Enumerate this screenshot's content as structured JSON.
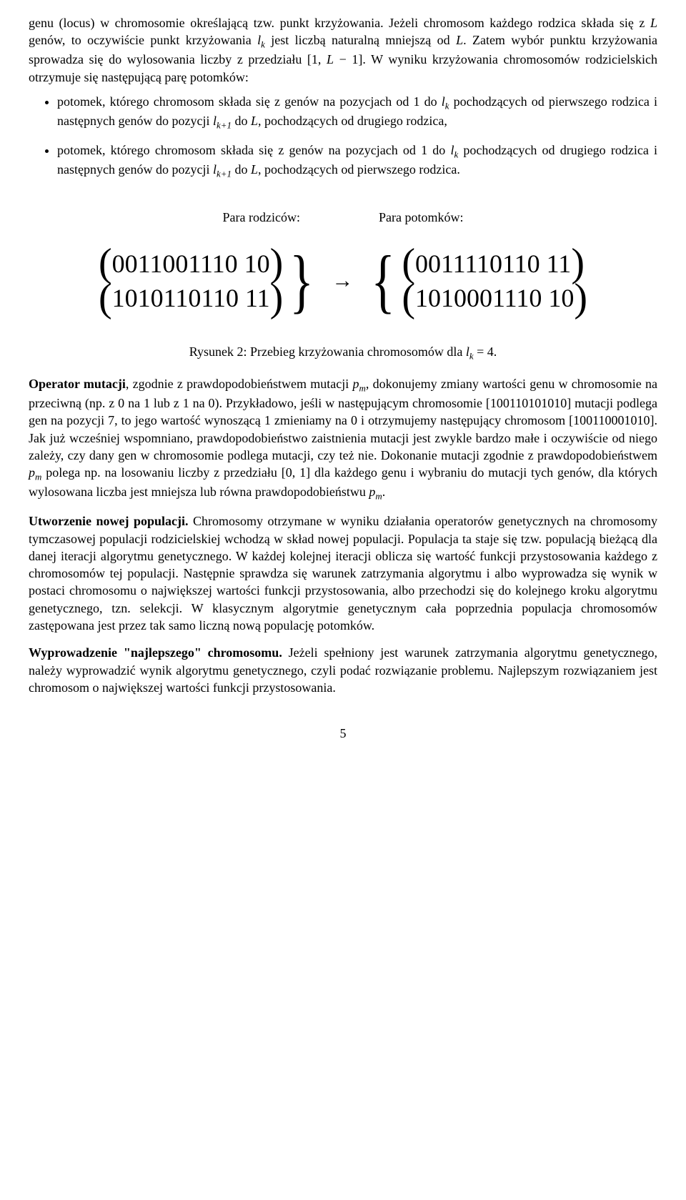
{
  "para1": {
    "t1": "genu (locus) w chromosomie określającą tzw. punkt krzyżowania. Jeżeli chromosom każdego rodzica składa się z ",
    "i1": "L",
    "t2": " genów, to oczywiście punkt krzyżowania ",
    "i2": "l",
    "s2": "k",
    "t3": " jest liczbą naturalną mniejszą od ",
    "i3": "L",
    "t4": ". Zatem wybór punktu krzyżowania sprowadza się do wylosowania liczby z przedziału [1, ",
    "i4": "L",
    "t5": " − 1]. W wyniku krzyżowania chromosomów rodzicielskich otrzymuje się następującą parę potomków:"
  },
  "bullet1": {
    "t1": "potomek, którego chromosom składa się z genów na pozycjach od 1 do ",
    "i1": "l",
    "s1": "k",
    "t2": " pochodzących od pierwszego rodzica i następnych genów do pozycji ",
    "i2": "l",
    "s2": "k+1",
    "t3": " do ",
    "i3": "L",
    "t4": ", pochodzących od drugiego rodzica,"
  },
  "bullet2": {
    "t1": "potomek, którego chromosom składa się z genów na pozycjach od 1 do ",
    "i1": "l",
    "s1": "k",
    "t2": " pochodzących od drugiego rodzica i następnych genów do pozycji ",
    "i2": "l",
    "s2": "k+1",
    "t3": " do ",
    "i3": "L",
    "t4": ", pochodzących od pierwszego rodzica."
  },
  "fig": {
    "label_left": "Para rodziców:",
    "label_right": "Para potomków:",
    "parent1": "0011001110 10",
    "parent2": "1010110110 11",
    "child1": "0011110110 11",
    "child2": "1010001110 10",
    "caption_a": "Rysunek 2: Przebieg krzyżowania chromosomów dla ",
    "caption_i": "l",
    "caption_s": "k",
    "caption_b": " = 4."
  },
  "para_mut": {
    "b": "Operator mutacji",
    "t1": ", zgodnie z prawdopodobieństwem mutacji ",
    "i1": "p",
    "s1": "m",
    "t2": ", dokonujemy zmiany wartości genu w chromosomie na przeciwną (np. z 0 na 1 lub z 1 na 0). Przykładowo, jeśli w następującym chromosomie [100110101010] mutacji podlega gen na pozycji 7, to jego wartość wynoszącą 1 zmieniamy na 0 i otrzymujemy następujący chromosom [100110001010]. Jak już wcześniej wspomniano, prawdopodobieństwo zaistnienia mutacji jest zwykle bardzo małe i oczywiście od niego zależy, czy dany gen w chromosomie podlega mutacji, czy też nie. Dokonanie mutacji zgodnie z prawdopodobieństwem ",
    "i2": "p",
    "s2": "m",
    "t3": " polega np. na losowaniu liczby z przedziału [0, 1] dla każdego genu i wybraniu do mutacji tych genów, dla których wylosowana liczba jest mniejsza lub równa prawdopodobieństwu ",
    "i3": "p",
    "s3": "m",
    "t4": "."
  },
  "para_pop": {
    "b": "Utworzenie nowej populacji.",
    "t": " Chromosomy otrzymane w wyniku działania operatorów genetycznych na chromosomy tymczasowej populacji rodzicielskiej wchodzą w skład nowej populacji. Populacja ta staje się tzw. populacją bieżącą dla danej iteracji algorytmu genetycznego. W każdej kolejnej iteracji oblicza się wartość funkcji przystosowania każdego z chromosomów tej populacji. Następnie sprawdza się warunek zatrzymania algorytmu i albo wyprowadza się wynik w postaci chromosomu o największej wartości funkcji przystosowania, albo przechodzi się do kolejnego kroku algorytmu genetycznego, tzn. selekcji. W klasycznym algorytmie genetycznym cała poprzednia populacja chromosomów zastępowana jest przez tak samo liczną nową populację potomków."
  },
  "para_best": {
    "b": "Wyprowadzenie \"najlepszego\" chromosomu.",
    "t": " Jeżeli spełniony jest warunek zatrzymania algorytmu genetycznego, należy wyprowadzić wynik algorytmu genetycznego, czyli podać rozwiązanie problemu. Najlepszym rozwiązaniem jest chromosom o największej wartości funkcji przystosowania."
  },
  "page": "5"
}
